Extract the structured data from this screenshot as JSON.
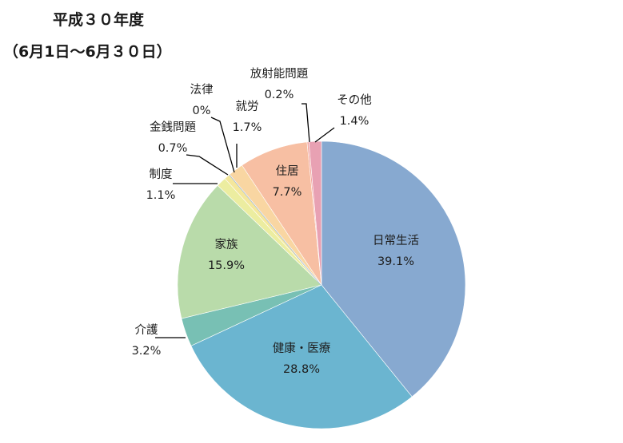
{
  "title": "平成３０年度",
  "subtitle": "（6月1日～6月３０日）",
  "chart_data": {
    "type": "pie",
    "start": "top",
    "direction": "clockwise",
    "slices": [
      {
        "label": "日常生活",
        "value": 39.1,
        "value_text": "39.1%",
        "color": "#87a9d0"
      },
      {
        "label": "健康・医療",
        "value": 28.8,
        "value_text": "28.8%",
        "color": "#6bb5d0"
      },
      {
        "label": "介護",
        "value": 3.2,
        "value_text": "3.2%",
        "color": "#78c0b4"
      },
      {
        "label": "家族",
        "value": 15.9,
        "value_text": "15.9%",
        "color": "#b9dbaa"
      },
      {
        "label": "制度",
        "value": 1.1,
        "value_text": "1.1%",
        "color": "#eceda0"
      },
      {
        "label": "金銭問題",
        "value": 0.7,
        "value_text": "0.7%",
        "color": "#f4e79c"
      },
      {
        "label": "法律",
        "value": 0,
        "value_text": "0%",
        "color": "#9fb8e0"
      },
      {
        "label": "就労",
        "value": 1.7,
        "value_text": "1.7%",
        "color": "#f9d6a2"
      },
      {
        "label": "住居",
        "value": 7.7,
        "value_text": "7.7%",
        "color": "#f7bfa3"
      },
      {
        "label": "放射能問題",
        "value": 0.2,
        "value_text": "0.2%",
        "color": "#f2a7a0"
      },
      {
        "label": "その他",
        "value": 1.4,
        "value_text": "1.4%",
        "color": "#e8a1b3"
      }
    ]
  }
}
